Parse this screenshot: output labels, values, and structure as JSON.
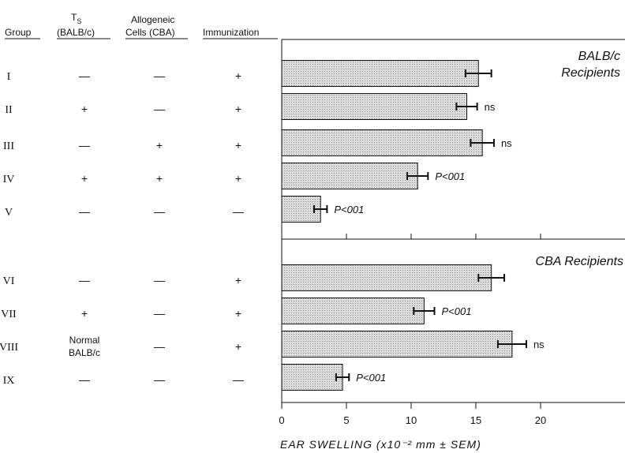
{
  "table": {
    "headers": {
      "group": "Group",
      "ts_top": "T",
      "ts_sub": "S",
      "ts_bottom": "(BALB/c)",
      "allo_top": "Allogeneic",
      "allo_bottom": "Cells (CBA)",
      "immunization": "Immunization"
    },
    "rows": [
      {
        "group": "I",
        "ts": "—",
        "allo": "—",
        "imm": "+"
      },
      {
        "group": "II",
        "ts": "+",
        "allo": "—",
        "imm": "+"
      },
      {
        "group": "III",
        "ts": "—",
        "allo": "+",
        "imm": "+"
      },
      {
        "group": "IV",
        "ts": "+",
        "allo": "+",
        "imm": "+"
      },
      {
        "group": "V",
        "ts": "—",
        "allo": "—",
        "imm": "—"
      },
      {
        "group": "VI",
        "ts": "—",
        "allo": "—",
        "imm": "+"
      },
      {
        "group": "VII",
        "ts": "+",
        "allo": "—",
        "imm": "+"
      },
      {
        "group": "VIII",
        "ts_line1": "Normal",
        "ts_line2": "BALB/c",
        "allo": "—",
        "imm": "+"
      },
      {
        "group": "IX",
        "ts": "—",
        "allo": "—",
        "imm": "—"
      }
    ]
  },
  "colors": {
    "bar_fill": "#d4d4d4",
    "bar_stroke": "#111111",
    "axis": "#111111"
  },
  "chart_data": {
    "type": "bar",
    "orientation": "horizontal",
    "categories": [
      "I",
      "II",
      "III",
      "IV",
      "V",
      "VI",
      "VII",
      "VIII",
      "IX"
    ],
    "values": [
      15.2,
      14.3,
      15.5,
      10.5,
      3.0,
      16.2,
      11.0,
      17.8,
      4.7
    ],
    "errors": [
      1.0,
      0.8,
      0.9,
      0.8,
      0.5,
      1.0,
      0.8,
      1.1,
      0.5
    ],
    "annotations": [
      "",
      "ns",
      "ns",
      "P<001",
      "P<001",
      "",
      "P<001",
      "ns",
      "P<001"
    ],
    "panels": [
      {
        "title_line1": "BALB/c",
        "title_line2": "Recipients",
        "groups": [
          "I",
          "II",
          "III",
          "IV",
          "V"
        ]
      },
      {
        "title_line1": "CBA Recipients",
        "title_line2": "",
        "groups": [
          "VI",
          "VII",
          "VIII",
          "IX"
        ]
      }
    ],
    "xlim": [
      0,
      27
    ],
    "xticks": [
      0,
      5,
      10,
      15,
      20
    ],
    "xlabel": "EAR SWELLING (x10⁻² mm ± SEM)",
    "grid": false
  }
}
